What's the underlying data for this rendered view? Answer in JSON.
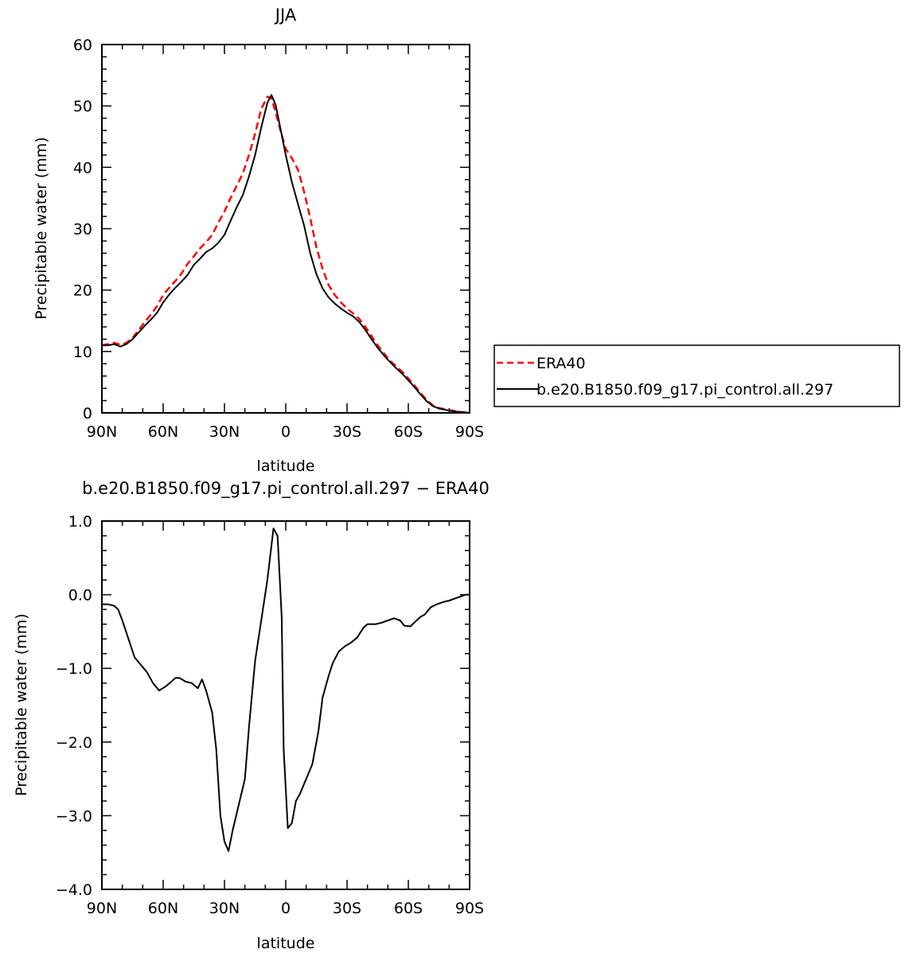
{
  "chart_data": [
    {
      "type": "line",
      "title": "JJA",
      "xlabel": "latitude",
      "ylabel": "Precipitable water (mm)",
      "xlim": [
        90,
        -90
      ],
      "ylim": [
        0,
        60
      ],
      "x_ticks": [
        90,
        60,
        30,
        0,
        -30,
        -60,
        -90
      ],
      "x_tick_labels": [
        "90N",
        "60N",
        "30N",
        "0",
        "30S",
        "60S",
        "90S"
      ],
      "y_ticks": [
        0,
        10,
        20,
        30,
        40,
        50,
        60
      ],
      "y_tick_labels": [
        "0",
        "10",
        "20",
        "30",
        "40",
        "50",
        "60"
      ],
      "legend": "outside-right",
      "series": [
        {
          "name": "ERA40",
          "color": "#ff0000",
          "dash": "dashed",
          "x": [
            90,
            87,
            84,
            81,
            78,
            75,
            72,
            69,
            66,
            63,
            60,
            57,
            54,
            51,
            48,
            45,
            42,
            39,
            36,
            33,
            30,
            27,
            24,
            21,
            18,
            15,
            12,
            9,
            7,
            5,
            3,
            0,
            -3,
            -6,
            -9,
            -12,
            -15,
            -18,
            -21,
            -24,
            -27,
            -30,
            -33,
            -36,
            -39,
            -42,
            -45,
            -48,
            -51,
            -54,
            -57,
            -60,
            -63,
            -66,
            -69,
            -72,
            -75,
            -78,
            -81,
            -84,
            -87,
            -90
          ],
          "y": [
            11.0,
            11.2,
            11.4,
            11.1,
            11.4,
            12.2,
            13.5,
            14.8,
            16.0,
            17.4,
            19.2,
            20.4,
            21.5,
            22.7,
            24.3,
            25.5,
            26.8,
            27.8,
            29.0,
            31.0,
            32.8,
            35.0,
            37.0,
            39.0,
            42.0,
            45.5,
            49.5,
            51.5,
            51.3,
            49.0,
            46.5,
            43.0,
            41.5,
            39.6,
            36.0,
            31.7,
            27.0,
            23.5,
            20.8,
            19.2,
            18.0,
            17.0,
            16.2,
            15.3,
            14.0,
            12.5,
            11.0,
            9.7,
            8.5,
            7.6,
            6.7,
            5.6,
            4.5,
            3.2,
            2.1,
            1.2,
            0.8,
            0.6,
            0.4,
            0.2,
            0.1,
            0.0
          ]
        },
        {
          "name": "b.e20.B1850.f09_g17.pi_control.all.297",
          "color": "#000000",
          "dash": "solid",
          "x": [
            90,
            87,
            84,
            81,
            78,
            75,
            72,
            69,
            66,
            63,
            60,
            57,
            54,
            51,
            48,
            45,
            42,
            39,
            36,
            33,
            30,
            27,
            24,
            21,
            18,
            15,
            12,
            9,
            7,
            5,
            3,
            0,
            -3,
            -6,
            -9,
            -12,
            -15,
            -18,
            -21,
            -24,
            -27,
            -30,
            -33,
            -36,
            -39,
            -42,
            -45,
            -48,
            -51,
            -54,
            -57,
            -60,
            -63,
            -66,
            -69,
            -72,
            -75,
            -78,
            -81,
            -84,
            -87,
            -90
          ],
          "y": [
            11.0,
            11.0,
            11.2,
            10.8,
            11.2,
            12.0,
            13.1,
            14.2,
            15.2,
            16.3,
            18.0,
            19.3,
            20.4,
            21.4,
            22.5,
            24.1,
            25.1,
            26.2,
            26.8,
            27.7,
            29.0,
            31.3,
            33.5,
            35.5,
            38.5,
            42.0,
            46.5,
            50.5,
            51.8,
            50.2,
            47.0,
            42.0,
            37.6,
            34.0,
            30.5,
            26.0,
            22.6,
            20.3,
            18.8,
            17.8,
            17.0,
            16.3,
            15.7,
            14.8,
            13.5,
            12.0,
            10.6,
            9.4,
            8.3,
            7.3,
            6.4,
            5.3,
            4.2,
            3.0,
            1.9,
            1.1,
            0.7,
            0.5,
            0.3,
            0.2,
            0.1,
            0.0
          ]
        }
      ]
    },
    {
      "type": "line",
      "title": "b.e20.B1850.f09_g17.pi_control.all.297 − ERA40",
      "xlabel": "latitude",
      "ylabel": "Precipitable water (mm)",
      "xlim": [
        90,
        -90
      ],
      "ylim": [
        -4.0,
        1.0
      ],
      "x_ticks": [
        90,
        60,
        30,
        0,
        -30,
        -60,
        -90
      ],
      "x_tick_labels": [
        "90N",
        "60N",
        "30N",
        "0",
        "30S",
        "60S",
        "90S"
      ],
      "y_ticks": [
        -4.0,
        -3.0,
        -2.0,
        -1.0,
        0.0,
        1.0
      ],
      "y_tick_labels": [
        "−4.0",
        "−3.0",
        "−2.0",
        "−1.0",
        "0.0",
        "1.0"
      ],
      "series": [
        {
          "color": "#000000",
          "dash": "solid",
          "x": [
            90,
            87,
            84,
            82,
            80,
            77,
            74,
            71,
            68,
            65,
            62,
            59,
            56,
            54,
            52,
            49,
            46,
            43,
            41,
            39,
            36,
            34,
            32,
            30,
            28,
            26,
            23,
            20,
            18,
            15,
            12,
            9,
            6,
            4,
            2,
            1,
            -1,
            -3,
            -5,
            -7,
            -10,
            -13,
            -16,
            -18,
            -21,
            -23,
            -26,
            -29,
            -32,
            -35,
            -38,
            -40,
            -42,
            -44,
            -47,
            -50,
            -53,
            -56,
            -58,
            -61,
            -64,
            -66,
            -68,
            -71,
            -74,
            -77,
            -80,
            -83,
            -86,
            -88,
            -90
          ],
          "y": [
            -0.13,
            -0.13,
            -0.15,
            -0.2,
            -0.35,
            -0.6,
            -0.85,
            -0.95,
            -1.05,
            -1.2,
            -1.3,
            -1.25,
            -1.18,
            -1.13,
            -1.13,
            -1.18,
            -1.2,
            -1.27,
            -1.15,
            -1.3,
            -1.6,
            -2.1,
            -3.0,
            -3.35,
            -3.48,
            -3.2,
            -2.85,
            -2.5,
            -1.8,
            -0.9,
            -0.35,
            0.2,
            0.9,
            0.8,
            -0.3,
            -2.1,
            -3.17,
            -3.1,
            -2.8,
            -2.7,
            -2.5,
            -2.3,
            -1.85,
            -1.4,
            -1.1,
            -0.93,
            -0.77,
            -0.7,
            -0.65,
            -0.58,
            -0.45,
            -0.4,
            -0.4,
            -0.4,
            -0.38,
            -0.35,
            -0.32,
            -0.35,
            -0.42,
            -0.43,
            -0.35,
            -0.3,
            -0.27,
            -0.17,
            -0.13,
            -0.1,
            -0.08,
            -0.05,
            -0.02,
            0.0,
            0.0
          ]
        }
      ]
    }
  ]
}
